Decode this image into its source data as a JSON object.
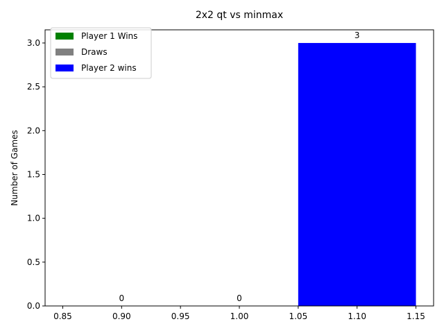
{
  "chart_data": {
    "type": "bar",
    "title": "2x2 qt vs minmax",
    "xlabel": "",
    "ylabel": "Number of Games",
    "xlim": [
      0.835,
      1.165
    ],
    "ylim": [
      0,
      3.15
    ],
    "xticks": [
      0.85,
      0.9,
      0.95,
      1.0,
      1.05,
      1.1,
      1.15
    ],
    "xtick_labels": [
      "0.85",
      "0.90",
      "0.95",
      "1.00",
      "1.05",
      "1.10",
      "1.15"
    ],
    "yticks": [
      0.0,
      0.5,
      1.0,
      1.5,
      2.0,
      2.5,
      3.0
    ],
    "ytick_labels": [
      "0.0",
      "0.5",
      "1.0",
      "1.5",
      "2.0",
      "2.5",
      "3.0"
    ],
    "grid": false,
    "legend_position": "top-left",
    "bar_width": 0.1,
    "series": [
      {
        "name": "Player 1 Wins",
        "x": 0.9,
        "value": 0,
        "label": "0",
        "color": "#008000"
      },
      {
        "name": "Draws",
        "x": 1.0,
        "value": 0,
        "label": "0",
        "color": "#808080"
      },
      {
        "name": "Player 2 wins",
        "x": 1.1,
        "value": 3,
        "label": "3",
        "color": "#0000ff"
      }
    ]
  }
}
